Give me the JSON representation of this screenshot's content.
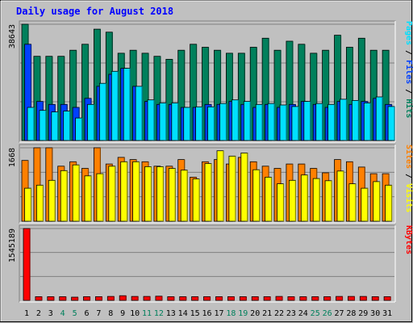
{
  "chart_data": {
    "type": "bar",
    "title": "Daily usage for August 2018",
    "days": [
      "1",
      "2",
      "3",
      "4",
      "5",
      "6",
      "7",
      "8",
      "9",
      "10",
      "11",
      "12",
      "13",
      "14",
      "15",
      "16",
      "17",
      "18",
      "19",
      "20",
      "21",
      "22",
      "23",
      "24",
      "25",
      "26",
      "27",
      "28",
      "29",
      "30",
      "31"
    ],
    "weekend_days": [
      "4",
      "5",
      "11",
      "12",
      "18",
      "19",
      "25",
      "26"
    ],
    "colors": {
      "hits": "#00805c",
      "files": "#0040ff",
      "pages": "#00e0ff",
      "visits": "#ffff00",
      "sites": "#ff8000",
      "kbytes": "#ff0000",
      "weekend_label": "#00805c",
      "weekday_label": "#000000",
      "title": "#0000ff"
    },
    "panels": [
      {
        "id": "hits-files-pages",
        "max_label": "38643",
        "ymax": 38643,
        "right_label": [
          {
            "text": "Pages",
            "color": "#00e0ff"
          },
          {
            "text": " / ",
            "color": "#000000"
          },
          {
            "text": "Files",
            "color": "#0040ff"
          },
          {
            "text": " / ",
            "color": "#000000"
          },
          {
            "text": "Hits",
            "color": "#00805c"
          }
        ],
        "series": [
          {
            "name": "Hits",
            "color": "#00805c",
            "values": [
              38643,
              28000,
              28000,
              28000,
              30000,
              32000,
              37000,
              36000,
              29000,
              30000,
              29000,
              28000,
              27000,
              30000,
              32000,
              31000,
              30000,
              29000,
              29000,
              31000,
              34000,
              30000,
              33000,
              32000,
              29000,
              30000,
              35000,
              31000,
              34000,
              30000,
              30000
            ]
          },
          {
            "name": "Files",
            "color": "#0040ff",
            "values": [
              32000,
              13000,
              12000,
              12000,
              11000,
              14000,
              18000,
              22000,
              24000,
              18000,
              13000,
              12000,
              12000,
              11000,
              11000,
              12000,
              12000,
              13000,
              12000,
              11000,
              12000,
              11000,
              12000,
              13000,
              12000,
              11000,
              13000,
              12000,
              13000,
              14000,
              12000
            ]
          },
          {
            "name": "Pages",
            "color": "#00e0ff",
            "values": [
              11000,
              10000,
              9500,
              9800,
              7500,
              12000,
              19000,
              23000,
              24000,
              18000,
              13500,
              12500,
              12500,
              11000,
              11200,
              11200,
              12300,
              13500,
              13000,
              12000,
              12300,
              11800,
              11300,
              13000,
              12300,
              12000,
              13700,
              13300,
              12500,
              14500,
              11300
            ]
          }
        ]
      },
      {
        "id": "visits-sites",
        "max_label": "1668",
        "ymax": 1668,
        "right_label": [
          {
            "text": "Sites",
            "color": "#ff8000"
          },
          {
            "text": " / ",
            "color": "#000000"
          },
          {
            "text": "Visits",
            "color": "#ffff00"
          }
        ],
        "series": [
          {
            "name": "Sites",
            "color": "#ff8000",
            "values": [
              1380,
              1668,
              1668,
              1250,
              1350,
              1200,
              1668,
              1300,
              1450,
              1400,
              1350,
              1250,
              1250,
              1400,
              1000,
              1350,
              1400,
              1300,
              1450,
              1350,
              1250,
              1200,
              1300,
              1300,
              1200,
              1100,
              1400,
              1350,
              1230,
              1080,
              1080
            ]
          },
          {
            "name": "Visits",
            "color": "#ffff00",
            "values": [
              750,
              820,
              930,
              1150,
              1280,
              1030,
              1080,
              1250,
              1350,
              1350,
              1240,
              1240,
              1200,
              1160,
              960,
              1310,
              1600,
              1480,
              1550,
              1170,
              1000,
              850,
              930,
              1050,
              970,
              920,
              1140,
              850,
              750,
              900,
              820
            ]
          }
        ]
      },
      {
        "id": "kbytes",
        "max_label": "1545189",
        "ymax": 1545189,
        "right_label": [
          {
            "text": "KBytes",
            "color": "#ff0000"
          }
        ],
        "series": [
          {
            "name": "KBytes",
            "color": "#ff0000",
            "values": [
              1545189,
              80000,
              80000,
              80000,
              70000,
              80000,
              80000,
              85000,
              100000,
              85000,
              85000,
              90000,
              80000,
              80000,
              80000,
              80000,
              80000,
              80000,
              80000,
              80000,
              80000,
              85000,
              80000,
              80000,
              80000,
              80000,
              85000,
              85000,
              85000,
              80000,
              80000
            ]
          }
        ]
      }
    ],
    "grid": true,
    "legend": "right-vertical"
  }
}
